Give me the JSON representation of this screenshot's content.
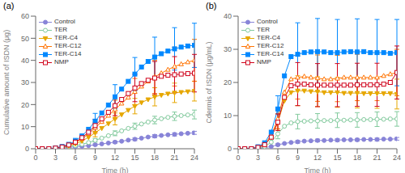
{
  "chart_data": [
    {
      "type": "line",
      "title": "(a)",
      "xlabel": "Time (h)",
      "ylabel": "Cumulative amount of ISDN (μg)",
      "x": [
        0,
        1,
        2,
        3,
        4,
        5,
        6,
        7,
        8,
        9,
        10,
        11,
        12,
        13,
        14,
        15,
        16,
        17,
        18,
        19,
        20,
        21,
        22,
        23,
        24
      ],
      "xlim": [
        0,
        24
      ],
      "xticks": [
        0,
        3,
        6,
        9,
        12,
        15,
        18,
        21,
        24
      ],
      "ylim": [
        0,
        60
      ],
      "yticks": [
        0,
        10,
        20,
        30,
        40,
        50,
        60
      ],
      "grid": false,
      "legend": "upper left",
      "series": [
        {
          "name": "Control",
          "color": "#8884d8",
          "marker": "filled-circle",
          "line_style": "solid",
          "values": [
            0,
            0,
            0,
            0.2,
            0.4,
            0.6,
            0.9,
            1.1,
            1.4,
            1.8,
            2.2,
            2.6,
            3.0,
            3.4,
            3.9,
            4.3,
            4.8,
            5.3,
            5.7,
            6.0,
            6.3,
            6.5,
            6.8,
            7.0,
            7.2
          ],
          "errors": [
            0,
            0,
            0,
            0,
            0,
            0,
            0.3,
            0,
            0,
            0.4,
            0,
            0,
            0.5,
            0,
            0,
            0.6,
            0,
            0,
            0.7,
            0,
            0,
            0.7,
            0,
            0,
            0.7
          ]
        },
        {
          "name": "TER",
          "color": "#82ca9d",
          "marker": "open-circle",
          "line_style": "solid",
          "values": [
            0,
            0,
            0,
            0.2,
            0.5,
            0.9,
            1.4,
            2.0,
            2.8,
            3.8,
            4.8,
            5.9,
            7.0,
            8.1,
            9.2,
            10.2,
            11.2,
            12.1,
            13.0,
            13.6,
            14.2,
            14.7,
            15.0,
            15.3,
            15.5
          ],
          "errors": [
            0,
            0,
            0,
            0,
            0,
            0,
            0.5,
            0,
            0,
            0.8,
            0,
            0,
            1.1,
            0,
            0,
            1.4,
            0,
            0,
            1.7,
            0,
            0,
            1.9,
            0,
            0,
            2.0
          ]
        },
        {
          "name": "TER-C4",
          "color": "#e6a700",
          "marker": "filled-triangle-down",
          "line_style": "solid",
          "values": [
            0,
            0,
            0,
            0.3,
            0.7,
            1.3,
            2.2,
            3.5,
            5.2,
            7.2,
            9.3,
            11.4,
            13.5,
            15.5,
            17.5,
            19.3,
            20.9,
            22.3,
            23.5,
            24.3,
            24.9,
            25.3,
            25.6,
            25.9,
            26.1
          ],
          "errors": [
            0,
            0,
            0,
            0,
            0,
            0,
            0.8,
            0,
            0,
            1.8,
            0,
            0,
            2.7,
            0,
            0,
            3.5,
            0,
            0,
            4.1,
            0,
            0,
            4.4,
            0,
            0,
            4.5
          ]
        },
        {
          "name": "TER-C12",
          "color": "#ff7300",
          "marker": "open-triangle-up",
          "line_style": "solid",
          "values": [
            0,
            0,
            0,
            0.3,
            0.8,
            1.6,
            2.8,
            4.5,
            6.8,
            9.5,
            12.2,
            15.0,
            17.8,
            20.5,
            23.2,
            25.8,
            28.2,
            30.5,
            32.5,
            34.2,
            35.8,
            37.2,
            38.3,
            39.2,
            40.0
          ],
          "errors": [
            0,
            0,
            0,
            0,
            0,
            0,
            1.0,
            0,
            0,
            2.5,
            0,
            0,
            4.2,
            0,
            0,
            6.0,
            0,
            0,
            7.5,
            0,
            0,
            8.8,
            0,
            0,
            9.5
          ]
        },
        {
          "name": "TER-C14",
          "color": "#0088fe",
          "marker": "filled-square",
          "line_style": "solid",
          "values": [
            0,
            0,
            0,
            0.4,
            1.0,
            2.0,
            3.5,
            5.8,
            8.8,
            12.5,
            16.2,
            19.8,
            23.5,
            27.0,
            30.5,
            33.8,
            37.0,
            39.5,
            41.5,
            43.0,
            44.2,
            45.2,
            46.0,
            46.5,
            46.8
          ],
          "errors": [
            0,
            0,
            0,
            0,
            0,
            0,
            1.2,
            0,
            0,
            3.5,
            0,
            0,
            5.5,
            0,
            0,
            7.5,
            0,
            0,
            9.0,
            0,
            0,
            9.6,
            0,
            0,
            10.0
          ]
        },
        {
          "name": "NMP",
          "color": "#d0021b",
          "marker": "open-square",
          "line_style": "solid",
          "values": [
            0,
            0,
            0,
            0.3,
            0.8,
            1.7,
            3.0,
            5.0,
            7.5,
            10.5,
            13.5,
            16.5,
            19.5,
            22.3,
            25.0,
            27.5,
            29.5,
            31.0,
            32.0,
            32.8,
            33.3,
            33.5,
            33.8,
            34.0,
            34.2
          ],
          "errors": [
            0,
            0,
            0,
            0,
            0,
            0,
            1.0,
            0,
            0,
            2.8,
            0,
            0,
            4.5,
            0,
            0,
            6.2,
            0,
            0,
            7.5,
            0,
            0,
            8.2,
            0,
            0,
            8.5
          ]
        }
      ]
    },
    {
      "type": "line",
      "title": "(b)",
      "xlabel": "Time (h)",
      "ylabel": "Cdermis of ISDN (μg/mL)",
      "x": [
        0,
        1,
        2,
        3,
        4,
        5,
        6,
        7,
        8,
        9,
        10,
        11,
        12,
        13,
        14,
        15,
        16,
        17,
        18,
        19,
        20,
        21,
        22,
        23,
        24
      ],
      "xlim": [
        0,
        24
      ],
      "xticks": [
        0,
        3,
        6,
        9,
        12,
        15,
        18,
        21,
        24
      ],
      "ylim": [
        0,
        40
      ],
      "yticks": [
        0,
        10,
        20,
        30,
        40
      ],
      "grid": false,
      "legend": "upper left",
      "series": [
        {
          "name": "Control",
          "color": "#8884d8",
          "marker": "filled-circle",
          "line_style": "solid",
          "values": [
            0,
            0,
            0,
            0.1,
            0.3,
            0.7,
            1.2,
            1.6,
            1.9,
            2.1,
            2.3,
            2.4,
            2.5,
            2.5,
            2.6,
            2.6,
            2.7,
            2.7,
            2.7,
            2.8,
            2.8,
            2.8,
            2.9,
            2.9,
            3.0
          ],
          "errors": [
            0,
            0,
            0,
            0,
            0,
            0,
            0.3,
            0,
            0,
            0.4,
            0,
            0,
            0.4,
            0,
            0,
            0.4,
            0,
            0,
            0.4,
            0,
            0,
            0.4,
            0,
            0,
            0.4
          ]
        },
        {
          "name": "TER",
          "color": "#82ca9d",
          "marker": "open-circle",
          "line_style": "solid",
          "values": [
            0,
            0,
            0,
            0.2,
            0.6,
            2.0,
            4.5,
            6.8,
            7.8,
            8.2,
            8.3,
            8.4,
            8.4,
            8.5,
            8.5,
            8.6,
            8.6,
            8.7,
            8.7,
            8.8,
            8.8,
            8.9,
            8.9,
            9.0,
            9.0
          ],
          "errors": [
            0,
            0,
            0,
            0,
            0,
            0,
            1.5,
            0,
            0,
            2.2,
            0,
            0,
            2.2,
            0,
            0,
            2.2,
            0,
            0,
            2.2,
            0,
            0,
            2.2,
            0,
            0,
            2.2
          ]
        },
        {
          "name": "TER-C4",
          "color": "#e6a700",
          "marker": "filled-triangle-down",
          "line_style": "solid",
          "values": [
            0,
            0,
            0,
            0.4,
            1.2,
            3.5,
            8.0,
            14.5,
            17.0,
            17.5,
            17.5,
            17.3,
            17.2,
            17.0,
            17.0,
            17.0,
            16.8,
            16.8,
            16.8,
            16.7,
            16.7,
            16.7,
            16.7,
            16.7,
            16.5
          ],
          "errors": [
            0,
            0,
            0,
            0,
            0,
            0,
            2.5,
            0,
            0,
            4.5,
            0,
            0,
            4.5,
            0,
            0,
            4.5,
            0,
            0,
            4.5,
            0,
            0,
            4.5,
            0,
            0,
            4.5
          ]
        },
        {
          "name": "TER-C12",
          "color": "#ff7300",
          "marker": "open-triangle-up",
          "line_style": "solid",
          "values": [
            0,
            0,
            0,
            0.5,
            1.5,
            4.0,
            9.0,
            17.0,
            21.0,
            21.5,
            21.8,
            21.5,
            21.3,
            21.0,
            21.0,
            21.2,
            21.5,
            21.5,
            21.5,
            21.5,
            21.5,
            21.5,
            22.0,
            22.5,
            23.0
          ],
          "errors": [
            0,
            0,
            0,
            0,
            0,
            0,
            3.0,
            0,
            0,
            6.5,
            0,
            0,
            7.0,
            0,
            0,
            7.0,
            0,
            0,
            7.0,
            0,
            0,
            7.0,
            0,
            0,
            7.0
          ]
        },
        {
          "name": "TER-C14",
          "color": "#0088fe",
          "marker": "filled-square",
          "line_style": "solid",
          "values": [
            0,
            0,
            0,
            0.6,
            1.8,
            5.0,
            12.0,
            22.0,
            27.8,
            28.5,
            29.0,
            29.2,
            29.3,
            29.2,
            29.0,
            29.0,
            29.2,
            29.3,
            29.2,
            29.3,
            29.0,
            29.0,
            29.0,
            28.8,
            29.0
          ],
          "errors": [
            0,
            0,
            0,
            0,
            0,
            0,
            4.0,
            0,
            0,
            9.5,
            0,
            0,
            10.0,
            0,
            0,
            10.0,
            0,
            0,
            10.0,
            0,
            0,
            10.0,
            0,
            0,
            10.0
          ]
        },
        {
          "name": "NMP",
          "color": "#d0021b",
          "marker": "open-square",
          "line_style": "solid",
          "values": [
            0,
            0,
            0,
            0.4,
            1.2,
            3.5,
            8.0,
            15.5,
            19.0,
            19.5,
            19.5,
            19.3,
            19.2,
            19.2,
            19.2,
            19.2,
            19.2,
            19.2,
            19.3,
            19.3,
            19.3,
            19.3,
            19.5,
            20.0,
            23.0
          ],
          "errors": [
            0,
            0,
            0,
            0,
            0,
            0,
            2.5,
            0,
            0,
            6.5,
            0,
            0,
            6.5,
            0,
            0,
            6.5,
            0,
            0,
            6.5,
            0,
            0,
            6.5,
            0,
            0,
            8.0
          ]
        }
      ]
    }
  ]
}
